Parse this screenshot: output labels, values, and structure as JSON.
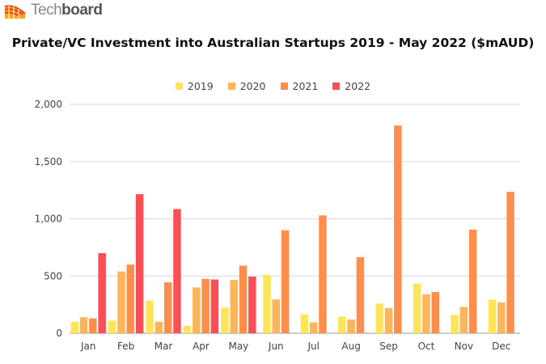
{
  "brand": {
    "name_light": "Tech",
    "name_bold": "board"
  },
  "chart_data": {
    "type": "bar",
    "title": "Private/VC Investment into Australian Startups 2019 - May 2022 ($mAUD)",
    "xlabel": "",
    "ylabel": "",
    "ylim": [
      0,
      2000
    ],
    "yticks": [
      0,
      500,
      1000,
      1500,
      2000
    ],
    "ytick_labels": [
      "0",
      "500",
      "1,000",
      "1,500",
      "2,000"
    ],
    "grid": true,
    "legend_position": "top-center",
    "categories": [
      "Jan",
      "Feb",
      "Mar",
      "Apr",
      "May",
      "Jun",
      "Jul",
      "Aug",
      "Sep",
      "Oct",
      "Nov",
      "Dec"
    ],
    "series": [
      {
        "name": "2019",
        "color": "#fde55a",
        "values": [
          100,
          110,
          285,
          65,
          225,
          510,
          165,
          145,
          260,
          435,
          160,
          295
        ]
      },
      {
        "name": "2020",
        "color": "#fdb55a",
        "values": [
          140,
          540,
          100,
          400,
          465,
          295,
          95,
          120,
          220,
          340,
          230,
          270
        ]
      },
      {
        "name": "2021",
        "color": "#fd8f4d",
        "values": [
          130,
          600,
          445,
          475,
          590,
          900,
          1030,
          665,
          1815,
          360,
          905,
          1235
        ]
      },
      {
        "name": "2022",
        "color": "#fb4f57",
        "values": [
          700,
          1215,
          1085,
          470,
          495,
          null,
          null,
          null,
          null,
          null,
          null,
          null
        ]
      }
    ]
  }
}
